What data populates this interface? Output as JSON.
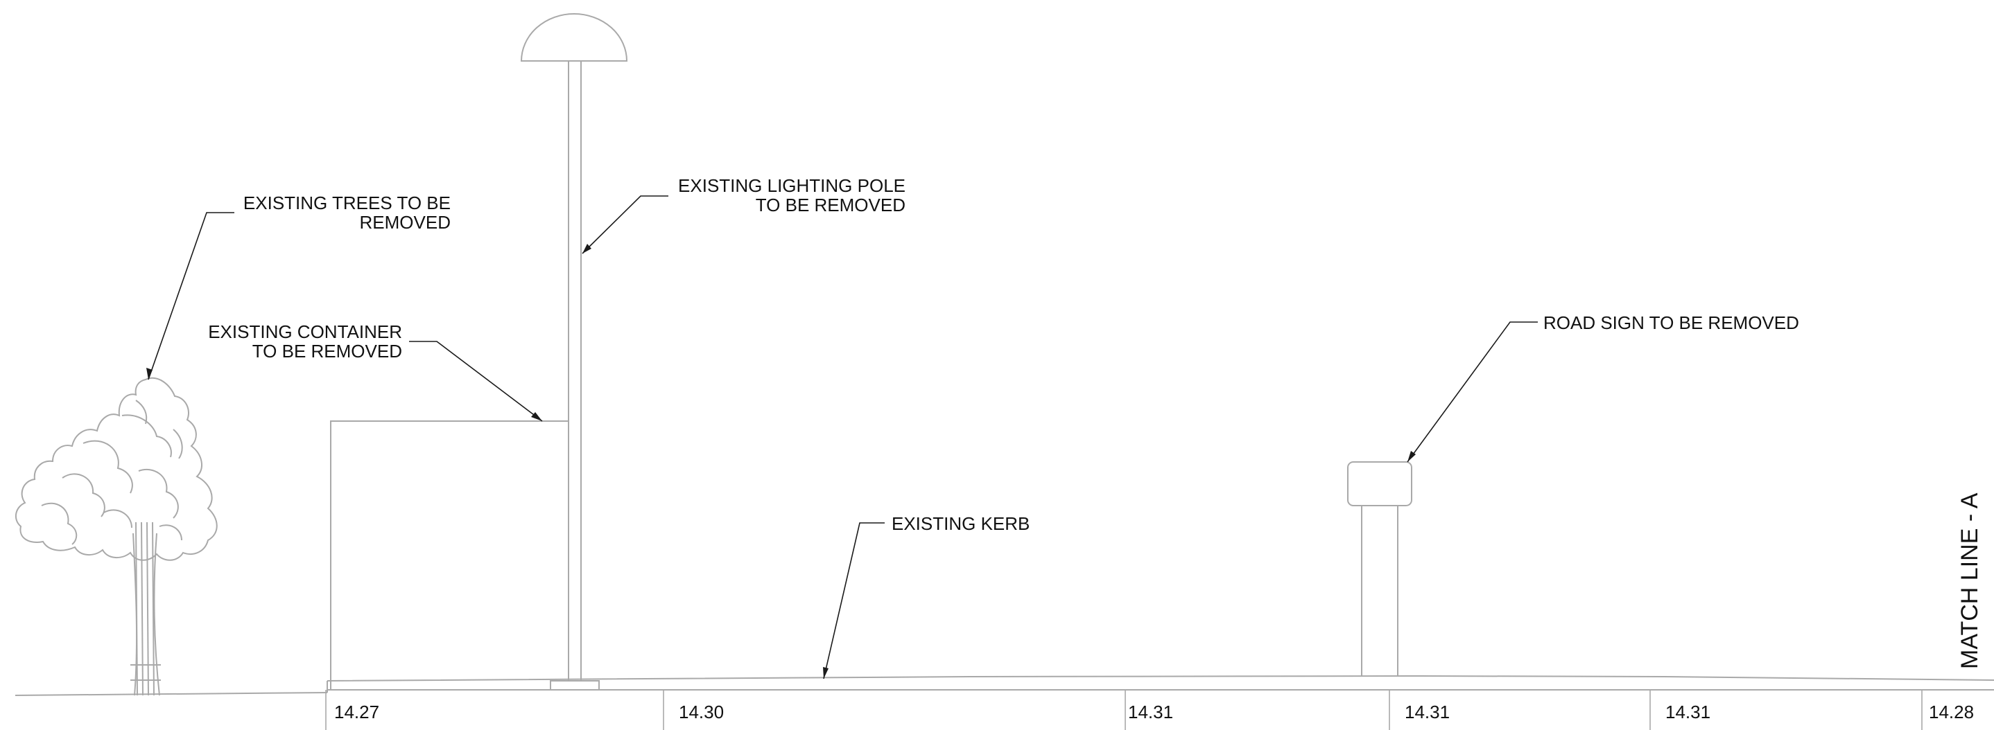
{
  "drawing": {
    "labels": {
      "trees": [
        "EXISTING TREES TO BE",
        "REMOVED"
      ],
      "pole": [
        "EXISTING LIGHTING POLE",
        "TO BE REMOVED"
      ],
      "container": [
        "EXISTING CONTAINER",
        "TO BE REMOVED"
      ],
      "sign": "ROAD SIGN TO BE REMOVED",
      "kerb": "EXISTING KERB"
    },
    "elevations": [
      "14.27",
      "14.30",
      "14.31",
      "14.31",
      "14.31",
      "14.28"
    ],
    "match_line": "MATCH LINE - A"
  }
}
